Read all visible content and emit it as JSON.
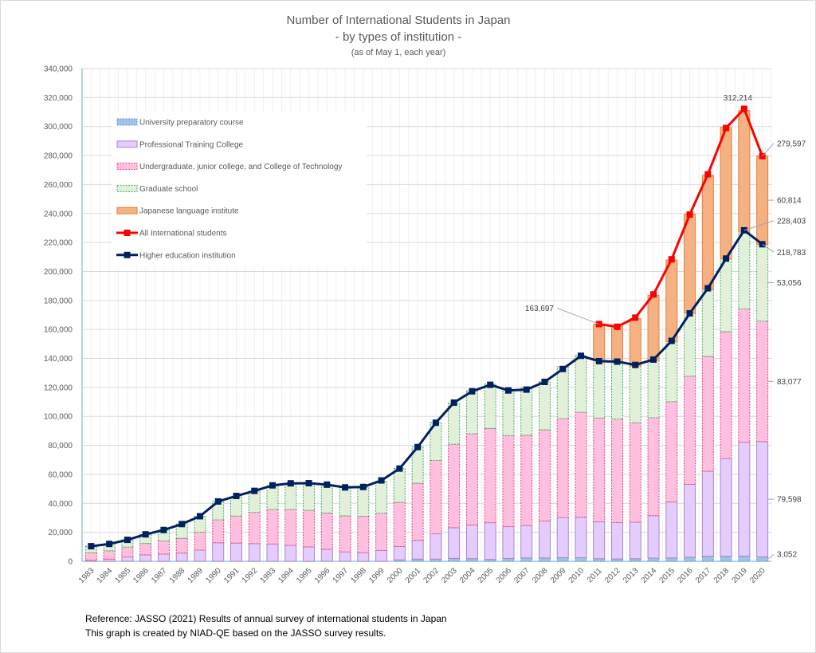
{
  "chart_data": {
    "type": "bar",
    "stacked": true,
    "title": "Number of International Students in Japan",
    "subtitle": "- by types of institution -",
    "note": "(as of May 1, each year)",
    "xlabel": "",
    "ylabel": "",
    "ylim": [
      0,
      340000
    ],
    "ytick_step": 20000,
    "yticks": [
      "0",
      "20,000",
      "40,000",
      "60,000",
      "80,000",
      "100,000",
      "120,000",
      "140,000",
      "160,000",
      "180,000",
      "200,000",
      "220,000",
      "240,000",
      "260,000",
      "280,000",
      "300,000",
      "320,000",
      "340,000"
    ],
    "grid": true,
    "legend_position": "top-left",
    "categories": [
      "1983",
      "1984",
      "1985",
      "1986",
      "1987",
      "1988",
      "1989",
      "1990",
      "1991",
      "1992",
      "1993",
      "1994",
      "1995",
      "1996",
      "1997",
      "1998",
      "1999",
      "2000",
      "2001",
      "2002",
      "2003",
      "2004",
      "2005",
      "2006",
      "2007",
      "2008",
      "2009",
      "2010",
      "2011",
      "2012",
      "2013",
      "2014",
      "2015",
      "2016",
      "2017",
      "2018",
      "2019",
      "2020"
    ],
    "series": [
      {
        "name": "University preparatory course",
        "kind": "bar",
        "color": "#9dc3e6",
        "border": "#5b9bd5",
        "values": [
          0,
          0,
          0,
          0,
          0,
          0,
          0,
          0,
          0,
          0,
          0,
          0,
          0,
          0,
          0,
          0,
          0,
          1000,
          1500,
          1500,
          2000,
          1800,
          1300,
          1900,
          2300,
          2300,
          2500,
          2500,
          1800,
          1600,
          1800,
          2200,
          2300,
          2800,
          3500,
          3500,
          3600,
          3052
        ]
      },
      {
        "name": "Professional Training College",
        "kind": "bar",
        "color": "#e4ccff",
        "border": "#a985c8",
        "values": [
          800,
          1500,
          3000,
          4500,
          5000,
          5700,
          7800,
          12800,
          12600,
          12200,
          12000,
          11000,
          10000,
          8300,
          6500,
          6000,
          7500,
          9200,
          13000,
          17500,
          21200,
          23300,
          25300,
          22000,
          22500,
          25500,
          27700,
          27900,
          25500,
          25100,
          25200,
          29300,
          38600,
          50300,
          58700,
          67500,
          78600,
          79598
        ]
      },
      {
        "name": "Undergraduate, junior college, and College of Technology",
        "kind": "bar",
        "color": "#ffbfdf",
        "border": "#e8407f",
        "values": [
          5200,
          5800,
          6800,
          7800,
          9000,
          10200,
          12300,
          15800,
          18600,
          21600,
          23800,
          24800,
          25200,
          25000,
          24900,
          25100,
          25700,
          30500,
          39400,
          50600,
          57600,
          63000,
          65100,
          62900,
          62200,
          63000,
          68300,
          72500,
          71600,
          71500,
          68600,
          67600,
          69300,
          74700,
          79200,
          87500,
          91900,
          83077
        ]
      },
      {
        "name": "Graduate school",
        "kind": "bar",
        "color": "#e2f0d9",
        "border": "#3dae5e",
        "values": [
          4400,
          4700,
          5000,
          6300,
          7600,
          9800,
          11000,
          12600,
          13200,
          14600,
          16300,
          18000,
          19000,
          19400,
          19500,
          19900,
          22100,
          23400,
          25100,
          26300,
          28300,
          29600,
          30600,
          31800,
          32400,
          33100,
          35800,
          39100,
          39700,
          39600,
          39200,
          39600,
          41400,
          43500,
          46300,
          50200,
          53100,
          53056
        ]
      },
      {
        "name": "Japanese language institute",
        "kind": "bar",
        "color": "#f4b183",
        "border": "#ed7d31",
        "values": [
          0,
          0,
          0,
          0,
          0,
          0,
          0,
          0,
          0,
          0,
          0,
          0,
          0,
          0,
          0,
          0,
          0,
          0,
          0,
          0,
          0,
          0,
          0,
          0,
          0,
          0,
          0,
          0,
          25000,
          24100,
          32600,
          44900,
          56300,
          68200,
          78700,
          90800,
          83800,
          60814
        ]
      },
      {
        "name": "All International students",
        "kind": "line",
        "color": "#ff0000",
        "values": [
          null,
          null,
          null,
          null,
          null,
          null,
          null,
          null,
          null,
          null,
          null,
          null,
          null,
          null,
          null,
          null,
          null,
          null,
          null,
          null,
          null,
          null,
          null,
          null,
          null,
          null,
          null,
          null,
          163697,
          161848,
          168145,
          184155,
          208379,
          239287,
          267042,
          298980,
          312214,
          279597
        ]
      },
      {
        "name": "Higher education institution",
        "kind": "line",
        "color": "#002060",
        "values": [
          10400,
          12000,
          14800,
          18600,
          21600,
          25700,
          31100,
          41300,
          45100,
          48600,
          52400,
          53800,
          53900,
          52900,
          51000,
          51300,
          55800,
          64000,
          78800,
          95600,
          109500,
          117300,
          121800,
          117900,
          118500,
          123800,
          132700,
          141800,
          138100,
          137800,
          135500,
          139200,
          152100,
          171100,
          188400,
          208900,
          228403,
          218783
        ]
      }
    ],
    "annotations": [
      {
        "year": "2011",
        "series": "All International students",
        "text": "163,697"
      },
      {
        "year": "2019",
        "series": "All International students",
        "text": "312,214"
      },
      {
        "year": "2020",
        "series": "All International students",
        "text": "279,597"
      },
      {
        "year": "2020",
        "series": "Japanese language institute",
        "text": "60,814"
      },
      {
        "year": "2019",
        "series": "Higher education institution",
        "text": "228,403"
      },
      {
        "year": "2020",
        "series": "Higher education institution",
        "text": "218,783"
      },
      {
        "year": "2020",
        "series": "Graduate school",
        "text": "53,056"
      },
      {
        "year": "2020",
        "series": "Undergraduate, junior college, and College of Technology",
        "text": "83,077"
      },
      {
        "year": "2020",
        "series": "Professional Training College",
        "text": "79,598"
      },
      {
        "year": "2020",
        "series": "University preparatory course",
        "text": "3,052"
      }
    ]
  },
  "footer": {
    "reference": "Reference: JASSO (2021) Results of annual survey of international students in Japan",
    "credit": "This graph is created by NIAD-QE based on the JASSO survey results."
  }
}
